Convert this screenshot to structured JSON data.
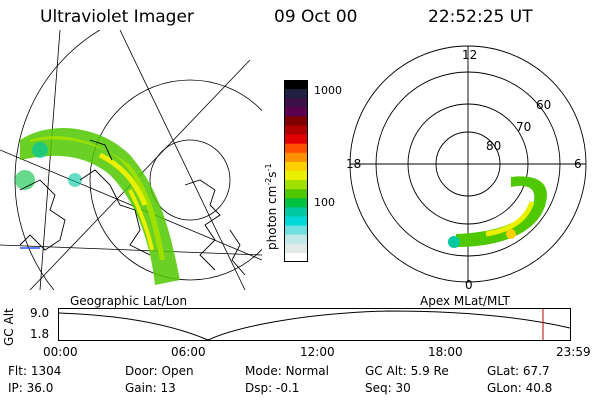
{
  "header": {
    "instrument": "Ultraviolet Imager",
    "date": "09 Oct 00",
    "time": "22:52:25 UT"
  },
  "colorbar": {
    "unit_label": "photon cm",
    "tick_labels": [
      "1000",
      "100"
    ],
    "colors": [
      "#000000",
      "#202040",
      "#3a1046",
      "#5a0050",
      "#800000",
      "#b00000",
      "#e00000",
      "#ff5000",
      "#ff9000",
      "#ffd000",
      "#e8f000",
      "#a0e000",
      "#50c800",
      "#00c040",
      "#00c8a0",
      "#00d8d8",
      "#70e0e0",
      "#c0e8e8",
      "#e0e8e8",
      "#ffffff"
    ]
  },
  "left_map": {
    "caption": "Geographic Lat/Lon"
  },
  "right_polar": {
    "caption": "Apex MLat/MLT",
    "mlt_labels": {
      "top": "12",
      "left": "18",
      "right": "6",
      "bottom": "0"
    },
    "lat_labels": [
      "60",
      "70",
      "80"
    ]
  },
  "timeline": {
    "ylabel": "GC Alt",
    "yticks": [
      "9.0",
      "1.8"
    ],
    "xticks": [
      "00:00",
      "06:00",
      "12:00",
      "18:00",
      "23:59"
    ],
    "marker_color": "#c00000"
  },
  "info": {
    "flt": {
      "label": "Flt:",
      "value": "1304"
    },
    "ip": {
      "label": "IP:",
      "value": "36.0"
    },
    "door": {
      "label": "Door:",
      "value": "Open"
    },
    "gain": {
      "label": "Gain:",
      "value": "13"
    },
    "mode": {
      "label": "Mode:",
      "value": "Normal"
    },
    "dsp": {
      "label": "Dsp:",
      "value": "-0.1"
    },
    "gcalt": {
      "label": "GC Alt:",
      "value": "5.9 Re"
    },
    "seq": {
      "label": "Seq:",
      "value": "30"
    },
    "glat": {
      "label": "GLat:",
      "value": "67.7"
    },
    "glon": {
      "label": "GLon:",
      "value": "40.8"
    }
  }
}
